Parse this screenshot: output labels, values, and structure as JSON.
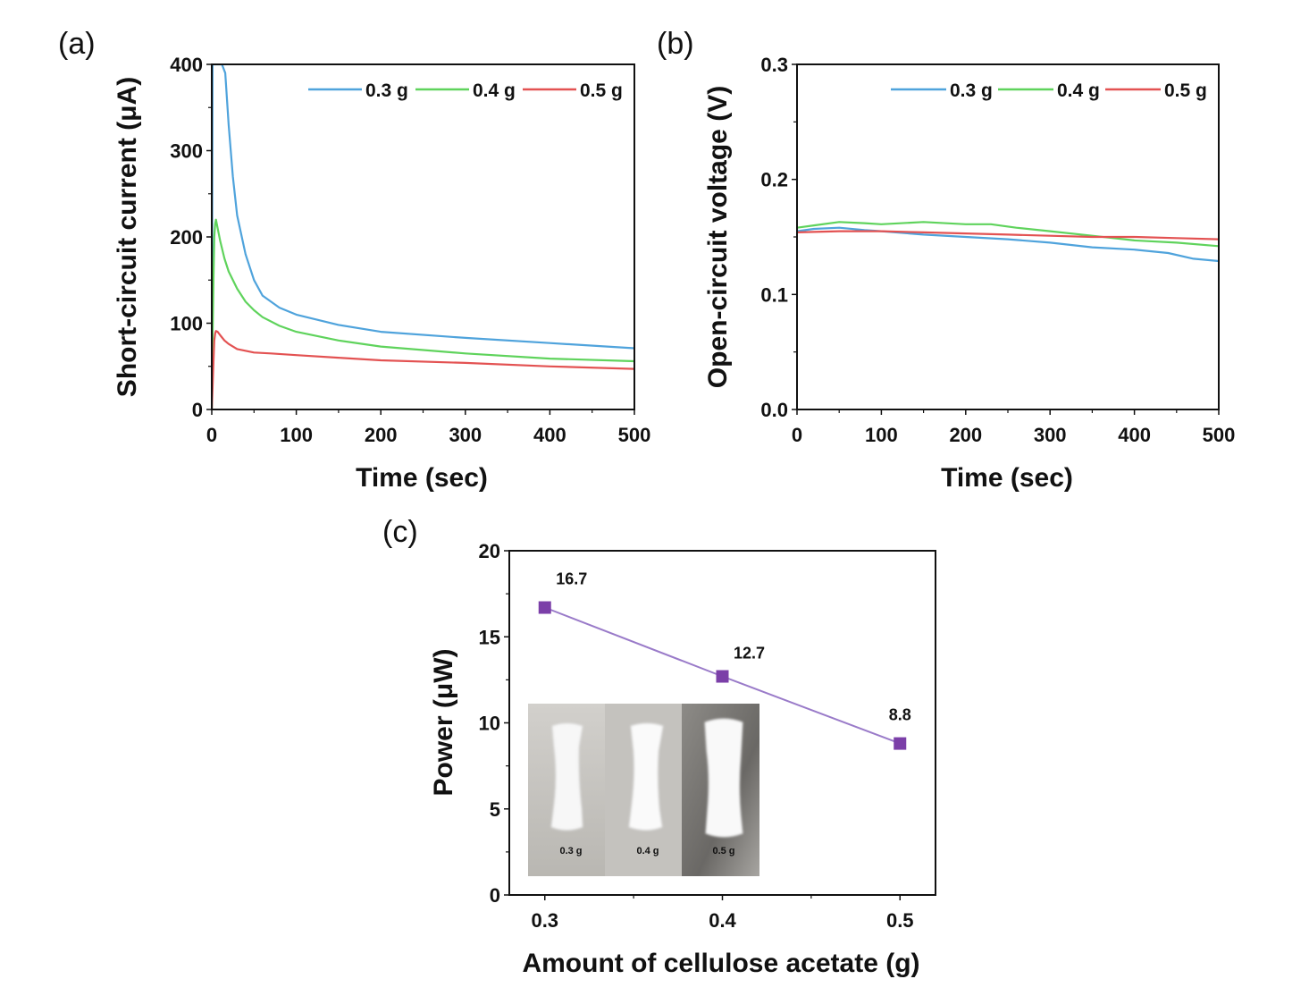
{
  "chart_data": [
    {
      "panel": "(a)",
      "type": "line",
      "xlabel": "Time (sec)",
      "ylabel": "Short-circuit current (μA)",
      "xlim": [
        0,
        500
      ],
      "ylim": [
        0,
        400
      ],
      "xticks": [
        "0",
        "100",
        "200",
        "300",
        "400",
        "500"
      ],
      "yticks": [
        "0",
        "100",
        "200",
        "300",
        "400"
      ],
      "legend_position": "top-right",
      "series": [
        {
          "name": "0.3 g",
          "color": "#4fa3dc",
          "x": [
            0,
            1,
            2,
            3,
            5,
            8,
            12,
            16,
            20,
            25,
            30,
            40,
            50,
            60,
            80,
            100,
            150,
            200,
            300,
            400,
            500
          ],
          "y": [
            0,
            400,
            400,
            400,
            400,
            400,
            400,
            390,
            330,
            270,
            225,
            180,
            150,
            132,
            118,
            110,
            98,
            90,
            83,
            77,
            71
          ]
        },
        {
          "name": "0.4 g",
          "color": "#5fd35c",
          "x": [
            0,
            1,
            2,
            3,
            4,
            5,
            7,
            10,
            15,
            20,
            30,
            40,
            50,
            60,
            80,
            100,
            150,
            200,
            300,
            400,
            500
          ],
          "y": [
            0,
            80,
            150,
            200,
            215,
            220,
            210,
            195,
            175,
            160,
            140,
            125,
            115,
            107,
            97,
            90,
            80,
            73,
            65,
            59,
            56
          ]
        },
        {
          "name": "0.5 g",
          "color": "#e35252",
          "x": [
            0,
            1,
            2,
            3,
            4,
            5,
            7,
            10,
            15,
            20,
            30,
            50,
            70,
            100,
            150,
            200,
            300,
            400,
            500
          ],
          "y": [
            0,
            25,
            55,
            80,
            88,
            91,
            90,
            86,
            80,
            76,
            70,
            66,
            65,
            63,
            60,
            57,
            54,
            50,
            47
          ]
        }
      ]
    },
    {
      "panel": "(b)",
      "type": "line",
      "xlabel": "Time (sec)",
      "ylabel": "Open-circuit voltage (V)",
      "xlim": [
        0,
        500
      ],
      "ylim": [
        0,
        0.3
      ],
      "xticks": [
        "0",
        "100",
        "200",
        "300",
        "400",
        "500"
      ],
      "yticks": [
        "0.0",
        "0.1",
        "0.2",
        "0.3"
      ],
      "legend_position": "top-right",
      "series": [
        {
          "name": "0.3 g",
          "color": "#4fa3dc",
          "x": [
            0,
            20,
            50,
            80,
            100,
            150,
            200,
            250,
            300,
            350,
            400,
            440,
            470,
            500
          ],
          "y": [
            0.155,
            0.157,
            0.158,
            0.156,
            0.155,
            0.152,
            0.15,
            0.148,
            0.145,
            0.141,
            0.139,
            0.136,
            0.131,
            0.129
          ]
        },
        {
          "name": "0.4 g",
          "color": "#5fd35c",
          "x": [
            0,
            20,
            50,
            80,
            100,
            150,
            200,
            230,
            260,
            300,
            350,
            400,
            450,
            500
          ],
          "y": [
            0.158,
            0.16,
            0.163,
            0.162,
            0.161,
            0.163,
            0.161,
            0.161,
            0.158,
            0.155,
            0.151,
            0.147,
            0.145,
            0.142
          ]
        },
        {
          "name": "0.5 g",
          "color": "#e35252",
          "x": [
            0,
            50,
            100,
            150,
            200,
            250,
            300,
            350,
            400,
            450,
            500
          ],
          "y": [
            0.154,
            0.155,
            0.155,
            0.154,
            0.153,
            0.152,
            0.151,
            0.15,
            0.15,
            0.149,
            0.148
          ]
        }
      ]
    },
    {
      "panel": "(c)",
      "type": "line",
      "xlabel": "Amount of cellulose acetate (g)",
      "ylabel": "Power (μW)",
      "xlim": [
        0.28,
        0.52
      ],
      "ylim": [
        0,
        20
      ],
      "xticks": [
        "0.3",
        "0.4",
        "0.5"
      ],
      "yticks": [
        "0",
        "5",
        "10",
        "15",
        "20"
      ],
      "series": [
        {
          "name": "Power",
          "color": "#9a7bc9",
          "marker_color": "#7b3fa8",
          "x": [
            0.3,
            0.4,
            0.5
          ],
          "y": [
            16.7,
            12.7,
            8.8
          ],
          "labels": [
            "16.7",
            "12.7",
            "8.8"
          ]
        }
      ],
      "inset": {
        "samples": [
          {
            "label": "0.3 g"
          },
          {
            "label": "0.4 g"
          },
          {
            "label": "0.5 g"
          }
        ]
      }
    }
  ]
}
